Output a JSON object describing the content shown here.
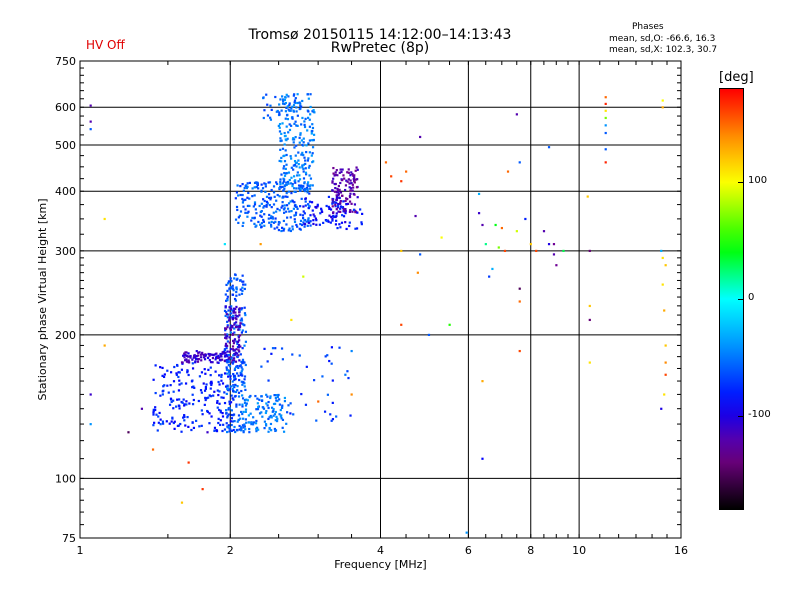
{
  "header": {
    "title_line1": "Tromsø 20150115 14:12:00–14:13:43",
    "title_line2": "RwPretec (8p)",
    "hv_status": "HV Off",
    "stats_title": "Phases",
    "stats_line1": "mean, sd,O: -66.6, 16.3",
    "stats_line2": "mean, sd,X: 102.3, 30.7"
  },
  "colors": {
    "hv_status": "#e00000"
  },
  "chart_data": {
    "type": "scatter",
    "title": "Tromsø 20150115 14:12:00–14:13:43",
    "subtitle": "RwPretec (8p)",
    "xlabel": "Frequency [MHz]",
    "ylabel": "Stationary phase Virtual Height [km]",
    "x_scale": "log",
    "y_scale": "log",
    "xlim": [
      1,
      16
    ],
    "ylim": [
      75,
      750
    ],
    "x_ticks": [
      1,
      2,
      4,
      6,
      8,
      10,
      16
    ],
    "y_ticks": [
      75,
      100,
      200,
      300,
      400,
      500,
      600,
      750
    ],
    "grid": true,
    "colorbar": {
      "title": "[deg]",
      "range": [
        -180,
        180
      ],
      "ticks": [
        100,
        0,
        -100
      ]
    },
    "series": [
      {
        "clusters": [
          {
            "f_min": 1.4,
            "f_max": 2.05,
            "h_min": 125,
            "h_max": 175,
            "phase": -80,
            "count": 220
          },
          {
            "f_min": 1.6,
            "f_max": 2.1,
            "h_min": 175,
            "h_max": 185,
            "phase": -110,
            "count": 110
          },
          {
            "f_min": 1.95,
            "f_max": 2.15,
            "h_min": 125,
            "h_max": 270,
            "phase": -60,
            "count": 230
          },
          {
            "f_min": 1.95,
            "f_max": 2.1,
            "h_min": 185,
            "h_max": 230,
            "phase": -115,
            "count": 70
          },
          {
            "f_min": 2.1,
            "f_max": 2.6,
            "h_min": 125,
            "h_max": 150,
            "phase": -50,
            "count": 120
          },
          {
            "f_min": 2.3,
            "f_max": 3.5,
            "h_min": 130,
            "h_max": 190,
            "phase": -70,
            "count": 40
          },
          {
            "f_min": 2.05,
            "f_max": 2.9,
            "h_min": 330,
            "h_max": 420,
            "phase": -60,
            "count": 260
          },
          {
            "f_min": 2.5,
            "f_max": 2.95,
            "h_min": 400,
            "h_max": 640,
            "phase": -50,
            "count": 200
          },
          {
            "f_min": 2.3,
            "f_max": 2.9,
            "h_min": 560,
            "h_max": 640,
            "phase": -55,
            "count": 40
          },
          {
            "f_min": 2.8,
            "f_max": 3.4,
            "h_min": 340,
            "h_max": 390,
            "phase": -90,
            "count": 60
          },
          {
            "f_min": 3.2,
            "f_max": 3.6,
            "h_min": 360,
            "h_max": 450,
            "phase": -120,
            "count": 120
          },
          {
            "f_min": 3.1,
            "f_max": 3.7,
            "h_min": 330,
            "h_max": 380,
            "phase": -80,
            "count": 30
          }
        ]
      },
      {
        "points": [
          [
            1.05,
            605,
            -120
          ],
          [
            1.05,
            560,
            -120
          ],
          [
            1.05,
            540,
            -60
          ],
          [
            1.05,
            150,
            -110
          ],
          [
            1.05,
            130,
            -40
          ],
          [
            1.12,
            350,
            110
          ],
          [
            1.12,
            190,
            130
          ],
          [
            1.25,
            125,
            -150
          ],
          [
            1.33,
            140,
            -120
          ],
          [
            1.4,
            115,
            150
          ],
          [
            1.45,
            130,
            -60
          ],
          [
            1.65,
            108,
            165
          ],
          [
            1.6,
            89,
            120
          ],
          [
            1.76,
            95,
            165
          ],
          [
            1.8,
            125,
            -110
          ],
          [
            1.95,
            310,
            -10
          ],
          [
            2.3,
            310,
            135
          ],
          [
            2.65,
            215,
            110
          ],
          [
            2.8,
            265,
            90
          ],
          [
            3.0,
            145,
            150
          ],
          [
            3.5,
            150,
            140
          ],
          [
            3.4,
            165,
            -50
          ],
          [
            3.5,
            185,
            -45
          ],
          [
            4.1,
            460,
            150
          ],
          [
            4.2,
            430,
            160
          ],
          [
            4.4,
            420,
            165
          ],
          [
            4.5,
            440,
            150
          ],
          [
            4.4,
            300,
            120
          ],
          [
            4.4,
            210,
            160
          ],
          [
            4.7,
            355,
            -120
          ],
          [
            4.75,
            270,
            140
          ],
          [
            4.8,
            295,
            -60
          ],
          [
            4.8,
            520,
            -120
          ],
          [
            5.0,
            200,
            -60
          ],
          [
            5.3,
            320,
            100
          ],
          [
            5.5,
            210,
            50
          ],
          [
            6.3,
            395,
            -30
          ],
          [
            6.3,
            360,
            -110
          ],
          [
            6.4,
            340,
            -120
          ],
          [
            6.5,
            310,
            20
          ],
          [
            6.4,
            160,
            130
          ],
          [
            6.4,
            110,
            -90
          ],
          [
            6.6,
            265,
            -70
          ],
          [
            6.7,
            275,
            -30
          ],
          [
            6.8,
            340,
            40
          ],
          [
            6.9,
            305,
            70
          ],
          [
            7.0,
            335,
            150
          ],
          [
            7.1,
            300,
            160
          ],
          [
            7.2,
            440,
            150
          ],
          [
            7.5,
            330,
            90
          ],
          [
            7.5,
            580,
            -120
          ],
          [
            7.6,
            460,
            -60
          ],
          [
            7.6,
            250,
            -150
          ],
          [
            7.6,
            235,
            150
          ],
          [
            7.6,
            185,
            160
          ],
          [
            7.8,
            350,
            -80
          ],
          [
            8.0,
            310,
            120
          ],
          [
            8.2,
            300,
            160
          ],
          [
            8.5,
            330,
            -120
          ],
          [
            8.7,
            310,
            -100
          ],
          [
            8.7,
            495,
            -60
          ],
          [
            8.9,
            310,
            -130
          ],
          [
            8.9,
            295,
            -120
          ],
          [
            9.0,
            280,
            -130
          ],
          [
            9.3,
            300,
            30
          ],
          [
            10.4,
            390,
            120
          ],
          [
            10.5,
            300,
            -140
          ],
          [
            10.5,
            230,
            120
          ],
          [
            10.5,
            215,
            -140
          ],
          [
            10.5,
            175,
            110
          ],
          [
            11.3,
            630,
            150
          ],
          [
            11.3,
            610,
            170
          ],
          [
            11.3,
            590,
            110
          ],
          [
            11.3,
            570,
            70
          ],
          [
            11.3,
            550,
            -40
          ],
          [
            11.3,
            530,
            -60
          ],
          [
            11.3,
            490,
            -60
          ],
          [
            11.3,
            460,
            170
          ],
          [
            14.7,
            620,
            100
          ],
          [
            14.7,
            600,
            130
          ],
          [
            14.6,
            300,
            -30
          ],
          [
            14.7,
            290,
            110
          ],
          [
            14.9,
            280,
            120
          ],
          [
            14.7,
            255,
            110
          ],
          [
            14.8,
            225,
            130
          ],
          [
            14.9,
            190,
            120
          ],
          [
            14.9,
            175,
            140
          ],
          [
            14.9,
            165,
            160
          ],
          [
            14.8,
            150,
            110
          ],
          [
            14.6,
            140,
            -100
          ],
          [
            5.95,
            77,
            -40
          ]
        ]
      }
    ]
  }
}
